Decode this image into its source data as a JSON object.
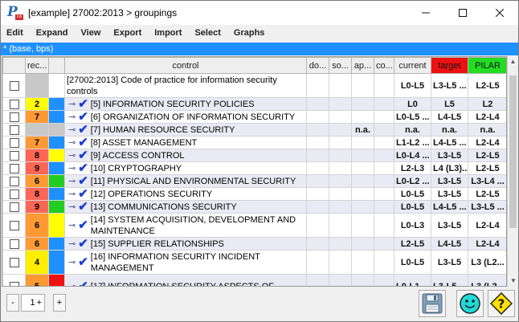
{
  "window": {
    "title": "[example] 27002:2013 > groupings",
    "minimize_icon": "minimize-icon",
    "maximize_icon": "maximize-icon",
    "close_icon": "close-icon"
  },
  "menu": [
    "Edit",
    "Expand",
    "View",
    "Export",
    "Import",
    "Select",
    "Graphs"
  ],
  "status_line": "* (base, bps)",
  "columns": {
    "chk": "",
    "rec": "rec...",
    "color": "",
    "control": "control",
    "do": "do...",
    "so": "so...",
    "ap": "ap...",
    "co": "co...",
    "current": "current",
    "target": "target",
    "pilar": "PILAR"
  },
  "colors": {
    "target_header": "#ee1111",
    "pilar_header": "#22dd22",
    "status_bar": "#1e90ff"
  },
  "rows": [
    {
      "rec": "",
      "rec_color": "#c8c8c8",
      "color": "#ffffff",
      "control": "[27002:2013] Code of practice for information security controls",
      "ap": "",
      "current": "L0-L5",
      "target": "L3-L5 ...",
      "pilar": "L2-L5",
      "root": true
    },
    {
      "rec": "2",
      "rec_color": "#ffff00",
      "color": "#1e90ff",
      "control": "[5] INFORMATION SECURITY POLICIES",
      "ap": "",
      "current": "L0",
      "target": "L5",
      "pilar": "L2"
    },
    {
      "rec": "7",
      "rec_color": "#ff9933",
      "color": "#1e90ff",
      "control": "[6] ORGANIZATION OF INFORMATION SECURITY",
      "ap": "",
      "current": "L0-L5 ...",
      "target": "L4-L5",
      "pilar": "L2-L4"
    },
    {
      "rec": "",
      "rec_color": "#c8c8c8",
      "color": "#c8c8c8",
      "control": "[7] HUMAN RESOURCE SECURITY",
      "ap": "n.a.",
      "current": "n.a.",
      "target": "n.a.",
      "pilar": "n.a."
    },
    {
      "rec": "7",
      "rec_color": "#ff9933",
      "color": "#1e90ff",
      "control": "[8] ASSET MANAGEMENT",
      "ap": "",
      "current": "L1-L2 ...",
      "target": "L4-L5 ...",
      "pilar": "L2-L4"
    },
    {
      "rec": "8",
      "rec_color": "#ff6655",
      "color": "#ffff00",
      "control": "[9] ACCESS CONTROL",
      "ap": "",
      "current": "L0-L4 ...",
      "target": "L3-L5",
      "pilar": "L2-L5"
    },
    {
      "rec": "9",
      "rec_color": "#ff6655",
      "color": "#1e90ff",
      "control": "[10] CRYPTOGRAPHY",
      "ap": "",
      "current": "L2-L3",
      "target": "L4 (L3)...",
      "pilar": "L2-L5"
    },
    {
      "rec": "6",
      "rec_color": "#ff9933",
      "color": "#22cc22",
      "control": "[11] PHYSICAL AND ENVIRONMENTAL SECURITY",
      "ap": "",
      "current": "L0-L2 ...",
      "target": "L3-L5",
      "pilar": "L3-L4 ..."
    },
    {
      "rec": "8",
      "rec_color": "#ff6655",
      "color": "#1e90ff",
      "control": "[12] OPERATIONS SECURITY",
      "ap": "",
      "current": "L0-L5",
      "target": "L3-L5",
      "pilar": "L2-L5"
    },
    {
      "rec": "9",
      "rec_color": "#ff6655",
      "color": "#22cc22",
      "control": "[13] COMMUNICATIONS SECURITY",
      "ap": "",
      "current": "L0-L5",
      "target": "L4-L5 ...",
      "pilar": "L3-L5 ..."
    },
    {
      "rec": "6",
      "rec_color": "#ff9933",
      "color": "#ffff00",
      "control": "[14] SYSTEM ACQUISITION, DEVELOPMENT AND MAINTENANCE",
      "ap": "",
      "current": "L0-L3",
      "target": "L3-L5",
      "pilar": "L2-L4",
      "tall": true
    },
    {
      "rec": "6",
      "rec_color": "#ff9933",
      "color": "#1e90ff",
      "control": "[15] SUPPLIER RELATIONSHIPS",
      "ap": "",
      "current": "L2-L5",
      "target": "L4-L5",
      "pilar": "L2-L4"
    },
    {
      "rec": "4",
      "rec_color": "#ffee00",
      "color": "#1e90ff",
      "control": "[16] INFORMATION SECURITY INCIDENT MANAGEMENT",
      "ap": "",
      "current": "L0-L5",
      "target": "L3-L5",
      "pilar": "L3 (L2...",
      "tall": true
    },
    {
      "rec": "5",
      "rec_color": "#ff9933",
      "color": "#ee1111",
      "control": "[17] INFORMATION SECURITY ASPECTS OF",
      "ap": "",
      "current": "L0-L1 ...",
      "target": "L3-L5 ...",
      "pilar": "L3 (L2...",
      "tall": true
    }
  ],
  "pager": {
    "minus": "-",
    "value": "1",
    "plus": "+",
    "add": "+"
  },
  "toolbar_icons": [
    "save-icon",
    "smiley-icon",
    "help-icon"
  ]
}
